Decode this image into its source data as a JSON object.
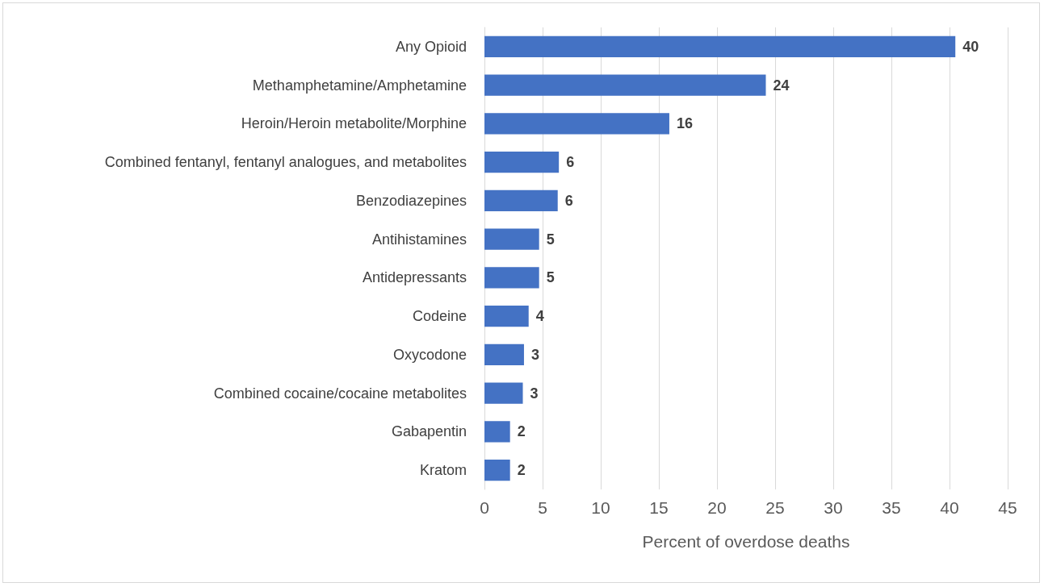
{
  "chart_data": {
    "type": "bar",
    "orientation": "horizontal",
    "xlabel": "Percent of overdose deaths",
    "categories": [
      "Any Opioid",
      "Methamphetamine/Amphetamine",
      "Heroin/Heroin metabolite/Morphine",
      "Combined fentanyl, fentanyl analogues, and metabolites",
      "Benzodiazepines",
      "Antihistamines",
      "Antidepressants",
      "Codeine",
      "Oxycodone",
      "Combined cocaine/cocaine metabolites",
      "Gabapentin",
      "Kratom"
    ],
    "values": [
      40.5,
      24.2,
      15.9,
      6.4,
      6.3,
      4.7,
      4.7,
      3.8,
      3.4,
      3.3,
      2.2,
      2.2
    ],
    "value_labels": [
      "40",
      "24",
      "16",
      "6",
      "6",
      "5",
      "5",
      "4",
      "3",
      "3",
      "2",
      "2"
    ],
    "color": "#4472c4",
    "xlim": [
      0,
      45
    ],
    "xticks": [
      0,
      5,
      10,
      15,
      20,
      25,
      30,
      35,
      40,
      45
    ],
    "grid": "x"
  }
}
